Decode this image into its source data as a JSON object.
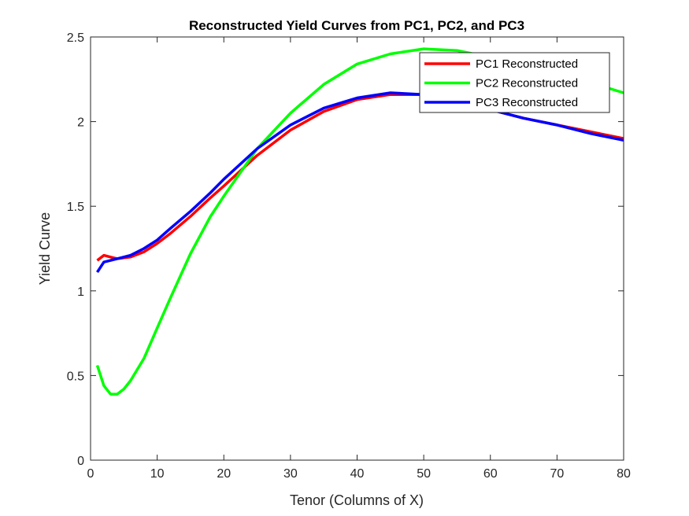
{
  "chart_data": {
    "type": "line",
    "title": "Reconstructed Yield Curves from PC1, PC2, and PC3",
    "xlabel": "Tenor (Columns of X)",
    "ylabel": "Yield Curve",
    "xlim": [
      0,
      80
    ],
    "ylim": [
      0,
      2.5
    ],
    "xticks": [
      0,
      10,
      20,
      30,
      40,
      50,
      60,
      70,
      80
    ],
    "yticks": [
      0,
      0.5,
      1,
      1.5,
      2,
      2.5
    ],
    "xtick_labels": [
      "0",
      "10",
      "20",
      "30",
      "40",
      "50",
      "60",
      "70",
      "80"
    ],
    "ytick_labels": [
      "0",
      "0.5",
      "1",
      "1.5",
      "2",
      "2.5"
    ],
    "grid": false,
    "legend": "top-right",
    "series": [
      {
        "name": "PC1 Reconstructed",
        "color": "#ff0000",
        "points": [
          [
            1,
            1.18
          ],
          [
            2,
            1.21
          ],
          [
            3,
            1.2
          ],
          [
            4,
            1.19
          ],
          [
            6,
            1.2
          ],
          [
            8,
            1.23
          ],
          [
            10,
            1.28
          ],
          [
            12,
            1.34
          ],
          [
            15,
            1.44
          ],
          [
            18,
            1.55
          ],
          [
            20,
            1.62
          ],
          [
            25,
            1.8
          ],
          [
            30,
            1.95
          ],
          [
            35,
            2.06
          ],
          [
            40,
            2.13
          ],
          [
            45,
            2.16
          ],
          [
            50,
            2.16
          ],
          [
            55,
            2.13
          ],
          [
            60,
            2.07
          ],
          [
            65,
            2.02
          ],
          [
            70,
            1.98
          ],
          [
            75,
            1.94
          ],
          [
            80,
            1.9
          ]
        ]
      },
      {
        "name": "PC2 Reconstructed",
        "color": "#00ff00",
        "points": [
          [
            1,
            0.56
          ],
          [
            2,
            0.44
          ],
          [
            3,
            0.39
          ],
          [
            4,
            0.39
          ],
          [
            5,
            0.42
          ],
          [
            6,
            0.47
          ],
          [
            8,
            0.6
          ],
          [
            10,
            0.78
          ],
          [
            12,
            0.96
          ],
          [
            15,
            1.22
          ],
          [
            18,
            1.44
          ],
          [
            20,
            1.56
          ],
          [
            25,
            1.84
          ],
          [
            30,
            2.05
          ],
          [
            35,
            2.22
          ],
          [
            40,
            2.34
          ],
          [
            45,
            2.4
          ],
          [
            50,
            2.43
          ],
          [
            55,
            2.42
          ],
          [
            60,
            2.38
          ],
          [
            65,
            2.33
          ],
          [
            70,
            2.28
          ],
          [
            75,
            2.23
          ],
          [
            80,
            2.17
          ]
        ]
      },
      {
        "name": "PC3 Reconstructed",
        "color": "#0000ff",
        "points": [
          [
            1,
            1.11
          ],
          [
            2,
            1.17
          ],
          [
            3,
            1.18
          ],
          [
            4,
            1.19
          ],
          [
            6,
            1.21
          ],
          [
            8,
            1.25
          ],
          [
            10,
            1.3
          ],
          [
            12,
            1.37
          ],
          [
            15,
            1.47
          ],
          [
            18,
            1.58
          ],
          [
            20,
            1.66
          ],
          [
            25,
            1.84
          ],
          [
            30,
            1.98
          ],
          [
            35,
            2.08
          ],
          [
            40,
            2.14
          ],
          [
            45,
            2.17
          ],
          [
            50,
            2.16
          ],
          [
            55,
            2.13
          ],
          [
            60,
            2.07
          ],
          [
            65,
            2.02
          ],
          [
            70,
            1.98
          ],
          [
            75,
            1.93
          ],
          [
            80,
            1.89
          ]
        ]
      }
    ]
  }
}
